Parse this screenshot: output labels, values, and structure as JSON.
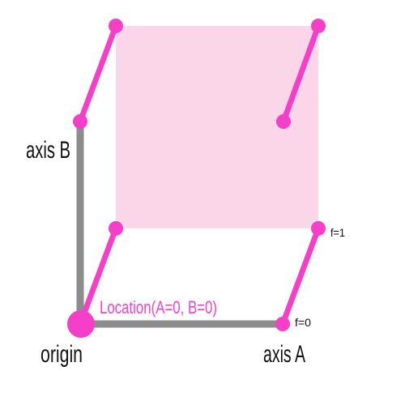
{
  "labels": {
    "axis_b": "axis B",
    "axis_a": "axis A",
    "origin": "origin",
    "location": "Location(A=0, B=0)",
    "f1": "f=1",
    "f0": "f=0"
  },
  "colors": {
    "axis": "#8c8c8c",
    "accent": "#f53fc8",
    "plane": "#fbd6e8",
    "text": "#111111"
  }
}
